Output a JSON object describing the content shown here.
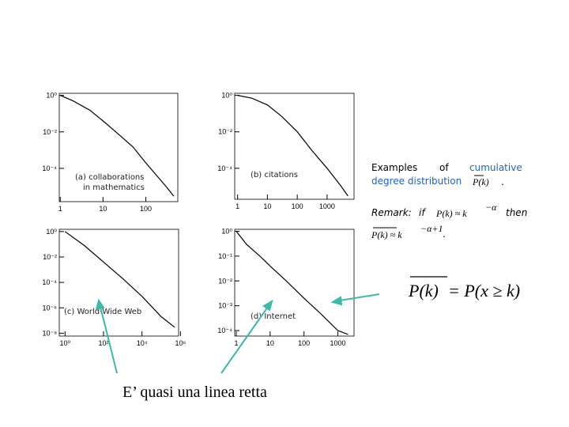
{
  "chart_data": [
    {
      "type": "line",
      "annotation": [
        "(a) collaborations",
        "in mathematics"
      ],
      "log_x": true,
      "log_y": true,
      "x": [
        1,
        2,
        5,
        10,
        20,
        50,
        100,
        200,
        300,
        450
      ],
      "series": [
        {
          "color": "#000000",
          "values": [
            1,
            0.5,
            0.15,
            0.04,
            0.01,
            0.0015,
            0.0002,
            3e-05,
            1e-05,
            3e-06
          ]
        }
      ],
      "xlim": [
        0.95,
        560
      ],
      "ylim": [
        1.5e-06,
        1.3
      ],
      "xticks": [
        1,
        10,
        100
      ],
      "yticks": [
        {
          "value": 1,
          "label": "10⁰"
        },
        {
          "value": 0.01,
          "label": "10⁻²"
        },
        {
          "value": 0.0001,
          "label": "10⁻⁴"
        }
      ]
    },
    {
      "type": "line",
      "annotation": [
        "(b) citations"
      ],
      "log_x": true,
      "log_y": true,
      "x": [
        1,
        3,
        10,
        30,
        100,
        300,
        1000,
        3000,
        5000
      ],
      "series": [
        {
          "color": "#000000",
          "values": [
            1,
            0.7,
            0.3,
            0.07,
            0.01,
            0.001,
            0.0001,
            1e-05,
            3e-06
          ]
        }
      ],
      "xlim": [
        0.8,
        8000
      ],
      "ylim": [
        2e-06,
        1.3
      ],
      "xticks": [
        1,
        10,
        100,
        1000
      ],
      "yticks": [
        {
          "value": 1,
          "label": "10⁰"
        },
        {
          "value": 0.01,
          "label": "10⁻²"
        },
        {
          "value": 0.0001,
          "label": "10⁻⁴"
        }
      ]
    },
    {
      "type": "line",
      "annotation": [
        "(c) World-Wide Web"
      ],
      "log_x": true,
      "log_y": true,
      "x": [
        1,
        10,
        100,
        1000,
        10000,
        100000,
        500000
      ],
      "series": [
        {
          "color": "#000000",
          "values": [
            1,
            0.08,
            0.004,
            0.0002,
            8e-06,
            2e-07,
            3e-08
          ]
        }
      ],
      "xlim": [
        0.5,
        800000
      ],
      "ylim": [
        6e-09,
        1.5
      ],
      "xticks": [
        {
          "value": 1,
          "label": "10⁰"
        },
        {
          "value": 100,
          "label": "10²"
        },
        {
          "value": 10000,
          "label": "10⁴"
        },
        {
          "value": 1000000,
          "label": "10⁶"
        }
      ],
      "yticks": [
        {
          "value": 1,
          "label": "10⁰"
        },
        {
          "value": 0.01,
          "label": "10⁻²"
        },
        {
          "value": 0.0001,
          "label": "10⁻⁴"
        },
        {
          "value": 1e-06,
          "label": "10⁻⁶"
        },
        {
          "value": 1e-08,
          "label": "10⁻⁸"
        }
      ]
    },
    {
      "type": "line",
      "annotation": [
        "(d) Internet"
      ],
      "log_x": true,
      "log_y": true,
      "x": [
        1,
        2,
        5,
        10,
        30,
        100,
        300,
        1000,
        2000
      ],
      "series": [
        {
          "color": "#000000",
          "values": [
            1,
            0.3,
            0.1,
            0.04,
            0.01,
            0.002,
            0.0005,
            0.0001,
            7e-05
          ]
        }
      ],
      "xlim": [
        0.9,
        3000
      ],
      "ylim": [
        6e-05,
        1.2
      ],
      "xticks": [
        1,
        10,
        100,
        1000
      ],
      "yticks": [
        {
          "value": 1,
          "label": "10⁰"
        },
        {
          "value": 0.1,
          "label": "10⁻¹"
        },
        {
          "value": 0.01,
          "label": "10⁻²"
        },
        {
          "value": 0.001,
          "label": "10⁻³"
        },
        {
          "value": 0.0001,
          "label": "10⁻⁴"
        }
      ]
    }
  ],
  "caption": {
    "lead": "Examples",
    "of": "of",
    "blue1": "cumulative",
    "blue2": "degree distribution",
    "symbol": "P(k)",
    "end": "."
  },
  "remark": {
    "label": "Remark:",
    "if": "if",
    "lhs": "P(k) ≈ k",
    "exp": "−α",
    "then": "then",
    "lhs2": "P(k) ≈ k",
    "exp2": "−α+1",
    "end": "."
  },
  "formula": {
    "lhs": "P(k)",
    "rhs": "= P(x ≥ k)"
  },
  "note": "E’ quasi una linea retta"
}
